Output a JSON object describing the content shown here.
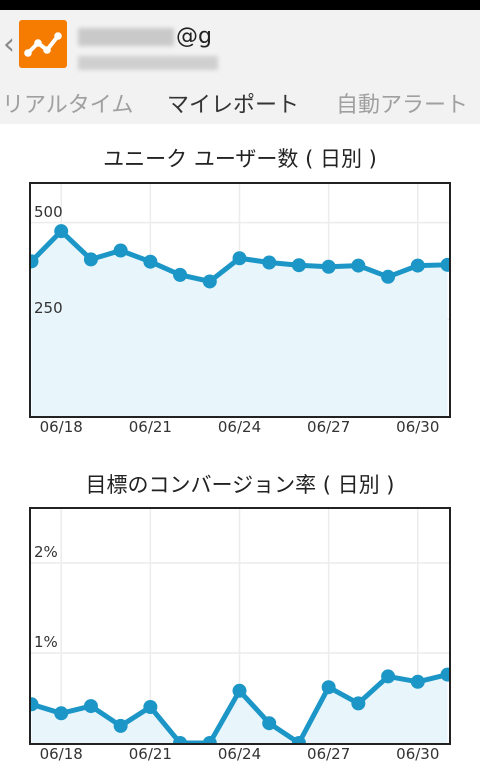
{
  "header": {
    "back_icon": "back-chevron-icon",
    "logo_icon": "analytics-logo-icon",
    "account_suffix": "@g"
  },
  "tabs": [
    {
      "label": "リアルタイム",
      "selected": false
    },
    {
      "label": "マイレポート",
      "selected": true
    },
    {
      "label": "自動アラート",
      "selected": false
    }
  ],
  "chart_data": [
    {
      "type": "area",
      "title": "ユニーク ユーザー数 ( 日別 )",
      "x": [
        "06/17",
        "06/18",
        "06/19",
        "06/20",
        "06/21",
        "06/22",
        "06/23",
        "06/24",
        "06/25",
        "06/26",
        "06/27",
        "06/28",
        "06/29",
        "06/30",
        "07/01"
      ],
      "x_tick_labels": [
        "06/18",
        "06/21",
        "06/24",
        "06/27",
        "06/30"
      ],
      "values": [
        400,
        478,
        405,
        428,
        399,
        365,
        348,
        408,
        397,
        390,
        386,
        389,
        360,
        389,
        391
      ],
      "y_tick_labels": [
        "500",
        "250"
      ],
      "y_tick_values": [
        500,
        250
      ],
      "ylim": [
        0,
        600
      ],
      "color": "#1b96c6",
      "fill": "#e8f5fb",
      "grid": true
    },
    {
      "type": "area",
      "title": "目標のコンバージョン率 ( 日別 )",
      "x": [
        "06/17",
        "06/18",
        "06/19",
        "06/20",
        "06/21",
        "06/22",
        "06/23",
        "06/24",
        "06/25",
        "06/26",
        "06/27",
        "06/28",
        "06/29",
        "06/30",
        "07/01"
      ],
      "x_tick_labels": [
        "06/18",
        "06/21",
        "06/24",
        "06/27",
        "06/30"
      ],
      "values": [
        0.43,
        0.33,
        0.41,
        0.19,
        0.4,
        0.0,
        0.0,
        0.58,
        0.22,
        0.0,
        0.62,
        0.44,
        0.74,
        0.68,
        0.76
      ],
      "y_tick_labels": [
        "2%",
        "1%"
      ],
      "y_tick_values": [
        2,
        1
      ],
      "ylim": [
        0,
        2.6
      ],
      "color": "#1b96c6",
      "fill": "#e8f5fb",
      "grid": true
    }
  ]
}
